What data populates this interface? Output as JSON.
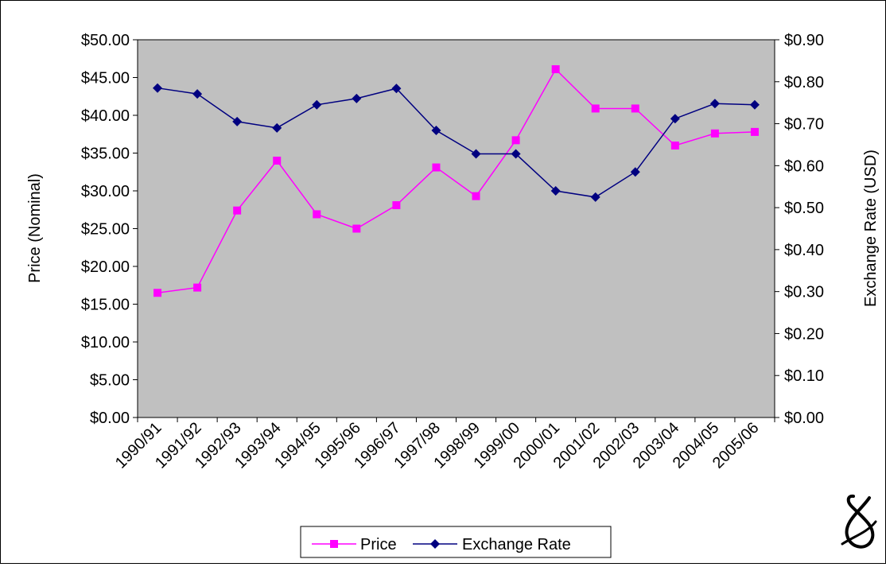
{
  "colors": {
    "plot_background": "#c0c0c0",
    "price_series": "#ff00ff",
    "exchange_series": "#000080"
  },
  "chart_data": {
    "type": "line",
    "title": "",
    "xlabel": "",
    "ylabel": "Price (Nominal)",
    "y2label": "Exchange Rate (USD)",
    "ylim": [
      0,
      50
    ],
    "y2lim": [
      0,
      0.9
    ],
    "yticks": [
      "$0.00",
      "$5.00",
      "$10.00",
      "$15.00",
      "$20.00",
      "$25.00",
      "$30.00",
      "$35.00",
      "$40.00",
      "$45.00",
      "$50.00"
    ],
    "y2ticks": [
      "$0.00",
      "$0.10",
      "$0.20",
      "$0.30",
      "$0.40",
      "$0.50",
      "$0.60",
      "$0.70",
      "$0.80",
      "$0.90"
    ],
    "categories": [
      "1990/91",
      "1991/92",
      "1992/93",
      "1993/94",
      "1994/95",
      "1995/96",
      "1996/97",
      "1997/98",
      "1998/99",
      "1999/00",
      "2000/01",
      "2001/02",
      "2002/03",
      "2003/04",
      "2004/05",
      "2005/06"
    ],
    "grid": false,
    "legend_position": "bottom",
    "series": [
      {
        "name": "Price",
        "axis": "left",
        "marker": "square",
        "values": [
          16.5,
          17.2,
          27.4,
          34.0,
          26.9,
          25.0,
          28.1,
          33.1,
          29.3,
          36.7,
          46.1,
          40.9,
          40.9,
          36.0,
          37.6,
          37.8
        ]
      },
      {
        "name": "Exchange Rate",
        "axis": "right",
        "marker": "diamond",
        "values": [
          0.785,
          0.771,
          0.705,
          0.69,
          0.745,
          0.76,
          0.784,
          0.684,
          0.628,
          0.628,
          0.54,
          0.525,
          0.585,
          0.712,
          0.748,
          0.745
        ]
      }
    ]
  }
}
